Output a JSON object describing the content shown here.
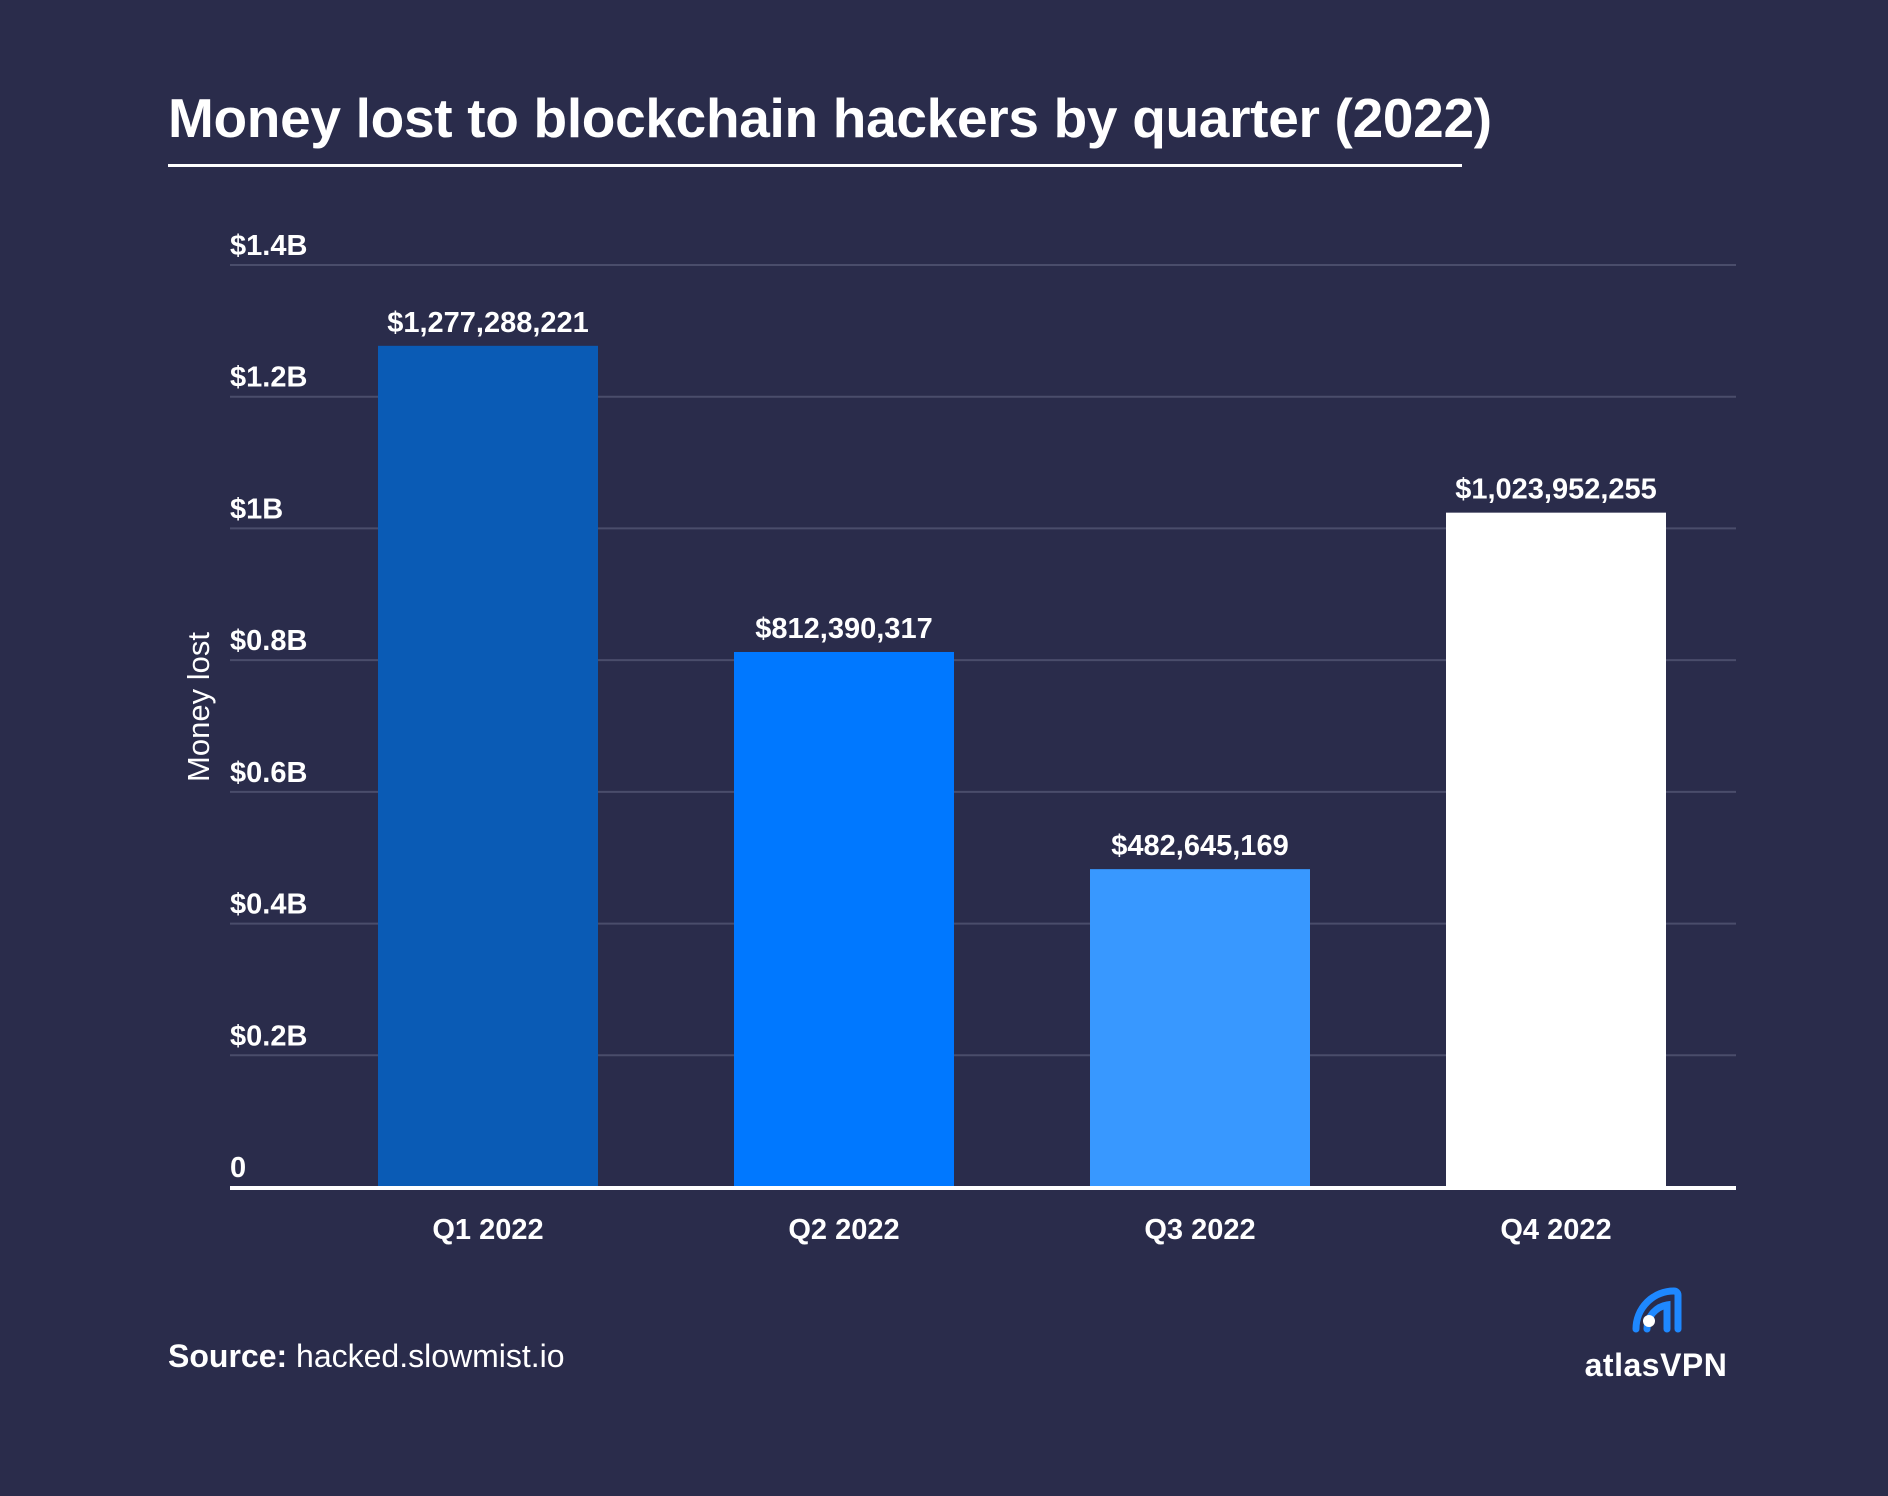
{
  "chart_data": {
    "type": "bar",
    "title": "Money lost to blockchain hackers by quarter (2022)",
    "xlabel": "",
    "ylabel": "Money lost",
    "categories": [
      "Q1 2022",
      "Q2 2022",
      "Q3 2022",
      "Q4 2022"
    ],
    "values": [
      1277288221,
      812390317,
      482645169,
      1023952255
    ],
    "value_labels": [
      "$1,277,288,221",
      "$812,390,317",
      "$482,645,169",
      "$1,023,952,255"
    ],
    "bar_colors": [
      "#0a5bb5",
      "#0078ff",
      "#3898ff",
      "#ffffff"
    ],
    "ylim": [
      0,
      1400000000
    ],
    "yticks": [
      0,
      200000000,
      400000000,
      600000000,
      800000000,
      1000000000,
      1200000000,
      1400000000
    ],
    "ytick_labels": [
      "0",
      "$0.2B",
      "$0.4B",
      "$0.6B",
      "$0.8B",
      "$1B",
      "$1.2B",
      "$1.4B"
    ],
    "grid": true,
    "legend": "none"
  },
  "source": {
    "label": "Source:",
    "text": "hacked.slowmist.io"
  },
  "brand": {
    "name": "atlasVPN",
    "icon": "atlasvpn-logo-icon",
    "accent": "#1e88ff"
  },
  "colors": {
    "background": "#2a2c4b",
    "gridline": "#4a4d6b",
    "text": "#ffffff"
  }
}
